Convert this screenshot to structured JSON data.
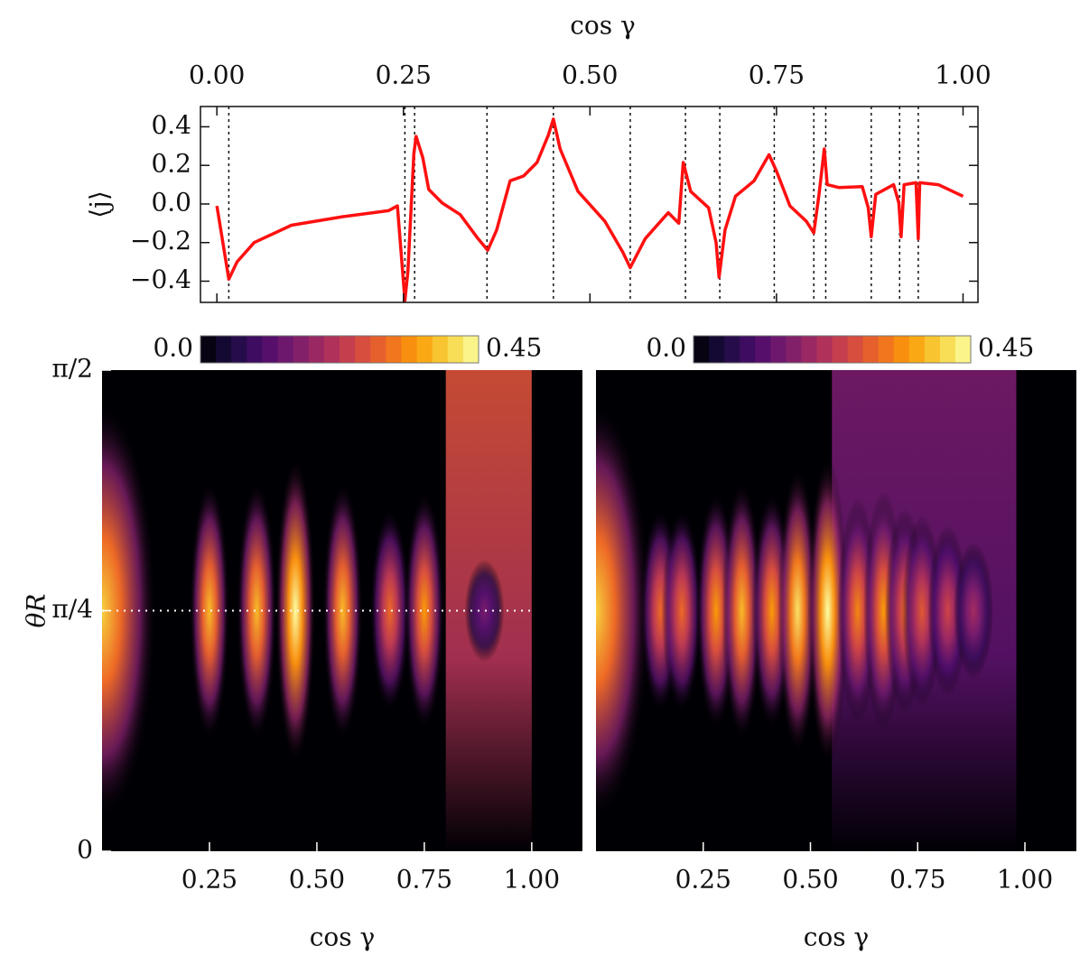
{
  "chart_data": [
    {
      "type": "line",
      "xlabel": "cos γ",
      "ylabel": "⟨j⟩",
      "xlim": [
        -0.022,
        1.02
      ],
      "ylim": [
        -0.51,
        0.505
      ],
      "xticks": [
        {
          "value": 0,
          "label": "0.00"
        },
        0.25,
        {
          "value": 0.5,
          "label": "0.50"
        },
        0.75,
        {
          "value": 1,
          "label": "1.00"
        }
      ],
      "yticks": [
        0.4,
        0.2,
        {
          "value": 0,
          "label": "0.0"
        },
        {
          "value": -0.2,
          "label": "−0.2"
        },
        {
          "value": -0.4,
          "label": "−0.4"
        }
      ],
      "vlines": [
        0.016,
        0.252,
        0.265,
        0.362,
        0.451,
        0.554,
        0.628,
        0.674,
        0.747,
        0.8,
        0.816,
        0.877,
        0.915,
        0.94
      ],
      "x": [
        0.0,
        0.016,
        0.027,
        0.05,
        0.1,
        0.17,
        0.23,
        0.242,
        0.252,
        0.256,
        0.264,
        0.267,
        0.276,
        0.284,
        0.302,
        0.326,
        0.35,
        0.363,
        0.375,
        0.393,
        0.411,
        0.429,
        0.444,
        0.451,
        0.46,
        0.484,
        0.52,
        0.544,
        0.554,
        0.574,
        0.605,
        0.619,
        0.625,
        0.635,
        0.659,
        0.669,
        0.673,
        0.681,
        0.695,
        0.72,
        0.74,
        0.75,
        0.768,
        0.79,
        0.8,
        0.807,
        0.814,
        0.818,
        0.834,
        0.865,
        0.873,
        0.877,
        0.883,
        0.907,
        0.914,
        0.917,
        0.921,
        0.937,
        0.94,
        0.942,
        0.967,
        1.0
      ],
      "series": [
        {
          "color": "#ff1010",
          "values": [
            -0.01,
            -0.39,
            -0.3,
            -0.2,
            -0.11,
            -0.065,
            -0.035,
            -0.01,
            -0.5,
            -0.35,
            0.26,
            0.35,
            0.24,
            0.075,
            0.005,
            -0.055,
            -0.18,
            -0.24,
            -0.135,
            0.12,
            0.145,
            0.215,
            0.355,
            0.44,
            0.285,
            0.065,
            -0.09,
            -0.25,
            -0.33,
            -0.18,
            -0.045,
            -0.1,
            0.215,
            0.065,
            -0.02,
            -0.2,
            -0.38,
            -0.135,
            0.04,
            0.12,
            0.255,
            0.17,
            -0.01,
            -0.09,
            -0.15,
            0.05,
            0.285,
            0.1,
            0.085,
            0.09,
            -0.02,
            -0.17,
            0.05,
            0.1,
            0.005,
            -0.17,
            0.1,
            0.11,
            -0.18,
            0.11,
            0.1,
            0.04
          ]
        }
      ]
    },
    {
      "type": "heatmap",
      "xlabel": "cos γ",
      "ylabel": "θR",
      "xlim": [
        0,
        1.118
      ],
      "ylim": [
        0,
        1.5708
      ],
      "xticks": [
        0.25,
        {
          "value": 0.5,
          "label": "0.50"
        },
        0.75,
        {
          "value": 1,
          "label": "1.00"
        }
      ],
      "yticks": [
        {
          "value": 0,
          "label": "0"
        },
        {
          "value": 0.7854,
          "label": "π/4"
        },
        {
          "value": 1.5708,
          "label": "π/2"
        }
      ],
      "colorbar": {
        "clim": [
          0,
          0.45
        ],
        "ticks": [
          {
            "value": 0,
            "label": "0.0"
          },
          0.45
        ]
      },
      "colormap": [
        "#000004",
        "#1b0c41",
        "#4a0c6b",
        "#781c6d",
        "#a52c60",
        "#cf4446",
        "#ed6925",
        "#fb9b06",
        "#f7d13d",
        "#fcffa4"
      ],
      "peaks": {
        "x": [
          0.0,
          0.25,
          0.36,
          0.45,
          0.56,
          0.67,
          0.75,
          0.89
        ],
        "values": [
          0.4,
          0.38,
          0.38,
          0.45,
          0.38,
          0.3,
          0.35,
          0.15
        ]
      },
      "plateau": {
        "x": [
          0.8,
          1.0
        ],
        "value": 0.27
      },
      "hline": {
        "y": 0.7854,
        "x": [
          0,
          1.0
        ]
      }
    },
    {
      "type": "heatmap",
      "xlabel": "cos γ",
      "xlim": [
        0,
        1.12
      ],
      "ylim": [
        0,
        1.5708
      ],
      "xticks": [
        0.25,
        {
          "value": 0.5,
          "label": "0.50"
        },
        0.75,
        {
          "value": 1,
          "label": "1.00"
        }
      ],
      "colorbar": {
        "clim": [
          0,
          0.45
        ],
        "ticks": [
          {
            "value": 0,
            "label": "0.0"
          },
          0.45
        ]
      },
      "colormap": [
        "#000004",
        "#1b0c41",
        "#4a0c6b",
        "#781c6d",
        "#a52c60",
        "#cf4446",
        "#ed6925",
        "#fb9b06",
        "#f7d13d",
        "#fcffa4"
      ],
      "peaks": {
        "x": [
          0.0,
          0.15,
          0.2,
          0.28,
          0.34,
          0.41,
          0.47,
          0.54,
          0.61,
          0.67,
          0.72,
          0.76,
          0.82,
          0.88
        ],
        "values": [
          0.4,
          0.3,
          0.3,
          0.35,
          0.38,
          0.35,
          0.42,
          0.45,
          0.33,
          0.35,
          0.3,
          0.28,
          0.25,
          0.2
        ]
      },
      "plateau": {
        "x": [
          0.55,
          0.98
        ],
        "value": 0.15
      }
    }
  ]
}
